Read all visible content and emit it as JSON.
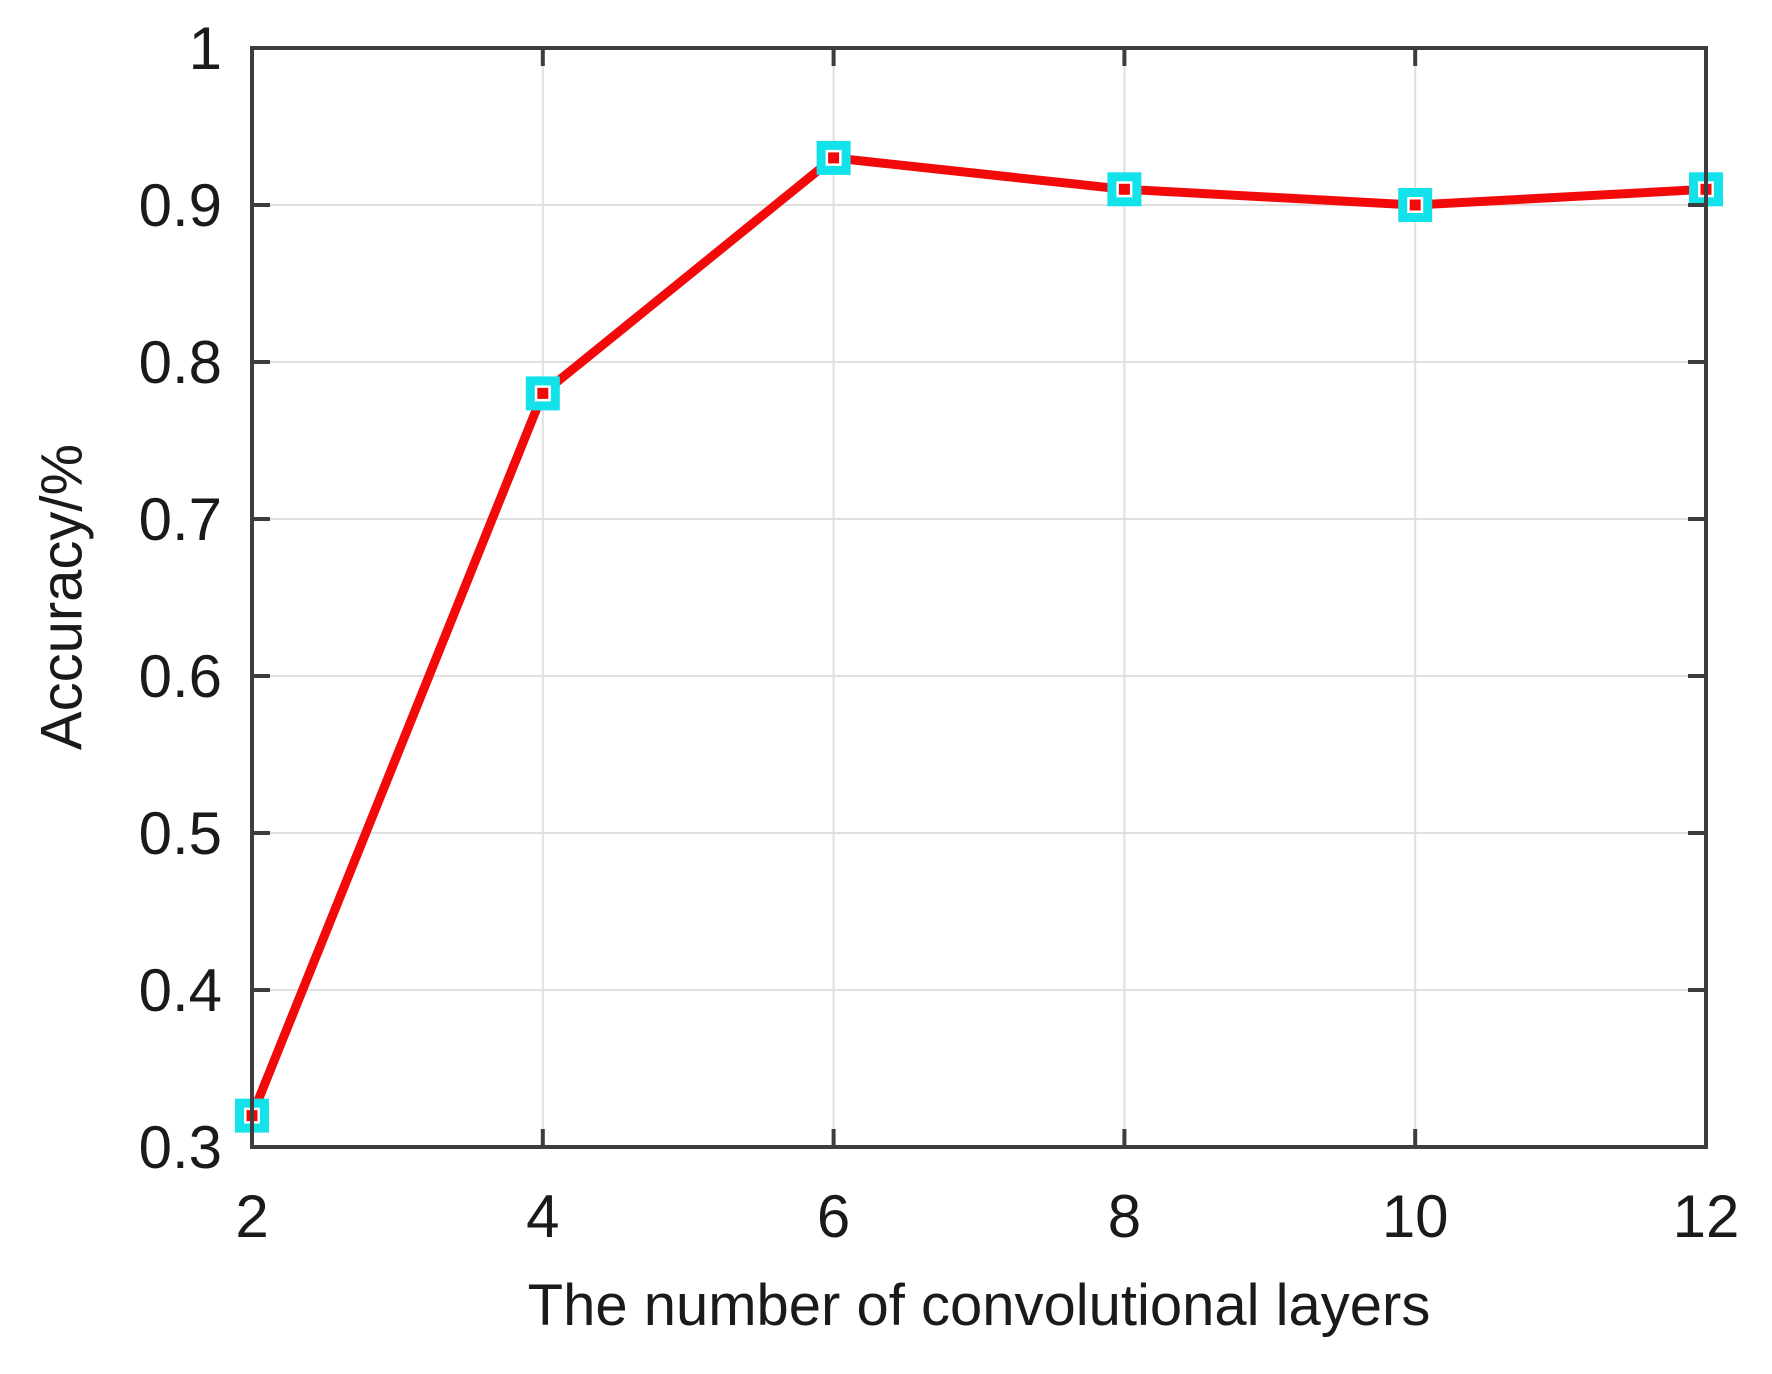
{
  "chart_data": {
    "type": "line",
    "title": "",
    "xlabel": "The number of convolutional layers",
    "ylabel": "Accuracy/%",
    "x": [
      2,
      4,
      6,
      8,
      10,
      12
    ],
    "series": [
      {
        "name": "accuracy",
        "values": [
          0.32,
          0.78,
          0.93,
          0.91,
          0.9,
          0.91
        ]
      }
    ],
    "xlim": [
      2,
      12
    ],
    "ylim": [
      0.3,
      1.0
    ],
    "xticks": [
      2,
      4,
      6,
      8,
      10,
      12
    ],
    "xtick_labels": [
      "2",
      "4",
      "6",
      "8",
      "10",
      "12"
    ],
    "yticks": [
      0.3,
      0.4,
      0.5,
      0.6,
      0.7,
      0.8,
      0.9,
      1
    ],
    "ytick_labels": [
      "0.3",
      "0.4",
      "0.5",
      "0.6",
      "0.7",
      "0.8",
      "0.9",
      "1"
    ],
    "grid": true,
    "legend": "none",
    "marker": "hollow-square",
    "colors": {
      "line": "#f20a0a",
      "marker_edge": "#14e2ea",
      "marker_face": "#ffffff",
      "marker_center_dot": "#f20a0a",
      "axis": "#3d3d3d",
      "grid": "#e0e0e0",
      "text": "#1a1a1a",
      "background": "#ffffff"
    }
  }
}
